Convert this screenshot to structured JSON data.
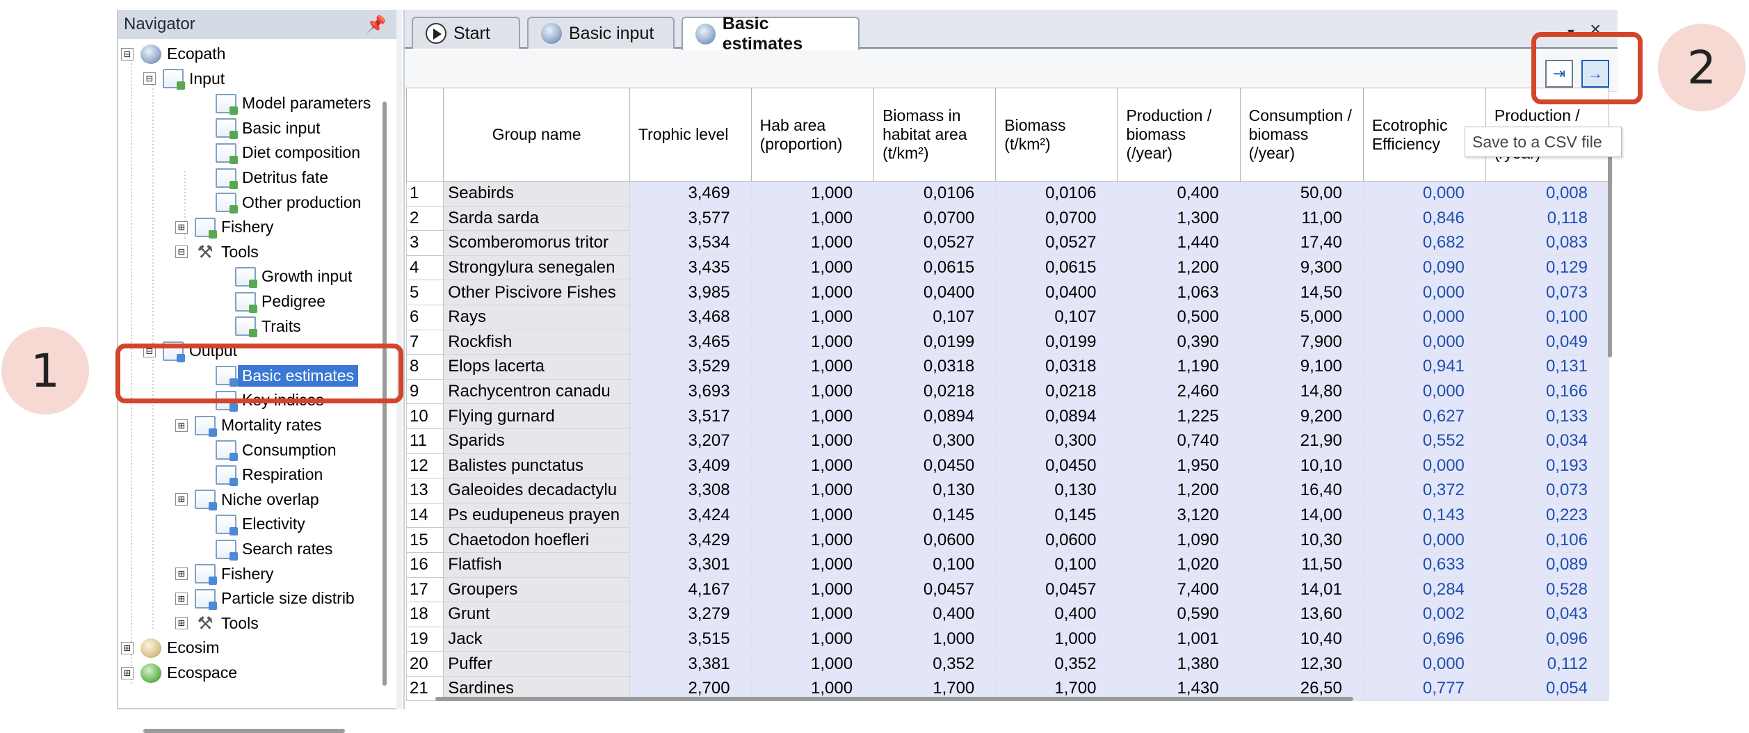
{
  "navigator": {
    "title": "Navigator",
    "items": [
      {
        "label": "Ecopath",
        "expander": "⊟",
        "icon": "globe"
      },
      {
        "label": "Input",
        "expander": "⊟",
        "icon": "doc"
      },
      {
        "label": "Model parameters",
        "expander": "",
        "icon": "doc"
      },
      {
        "label": "Basic input",
        "expander": "",
        "icon": "doc"
      },
      {
        "label": "Diet composition",
        "expander": "",
        "icon": "doc"
      },
      {
        "label": "Detritus fate",
        "expander": "",
        "icon": "doc"
      },
      {
        "label": "Other production",
        "expander": "",
        "icon": "doc"
      },
      {
        "label": "Fishery",
        "expander": "⊞",
        "icon": "doc"
      },
      {
        "label": "Tools",
        "expander": "⊟",
        "icon": "tools"
      },
      {
        "label": "Growth input",
        "expander": "",
        "icon": "doc"
      },
      {
        "label": "Pedigree",
        "expander": "",
        "icon": "doc"
      },
      {
        "label": "Traits",
        "expander": "",
        "icon": "doc"
      },
      {
        "label": "Output",
        "expander": "⊟",
        "icon": "doc-out"
      },
      {
        "label": "Basic estimates",
        "expander": "",
        "icon": "doc-out",
        "selected": true
      },
      {
        "label": "Key indices",
        "expander": "",
        "icon": "doc-out"
      },
      {
        "label": "Mortality rates",
        "expander": "⊞",
        "icon": "doc-out"
      },
      {
        "label": "Consumption",
        "expander": "",
        "icon": "doc-out"
      },
      {
        "label": "Respiration",
        "expander": "",
        "icon": "doc-out"
      },
      {
        "label": "Niche overlap",
        "expander": "⊞",
        "icon": "doc-out"
      },
      {
        "label": "Electivity",
        "expander": "",
        "icon": "doc-out"
      },
      {
        "label": "Search rates",
        "expander": "",
        "icon": "doc-out"
      },
      {
        "label": "Fishery",
        "expander": "⊞",
        "icon": "doc-out"
      },
      {
        "label": "Particle size distrib",
        "expander": "⊞",
        "icon": "doc-out"
      },
      {
        "label": "Tools",
        "expander": "⊞",
        "icon": "tools"
      },
      {
        "label": "Ecosim",
        "expander": "⊞",
        "icon": "sim"
      },
      {
        "label": "Ecospace",
        "expander": "⊞",
        "icon": "space"
      }
    ]
  },
  "tabs": [
    {
      "label": "Start"
    },
    {
      "label": "Basic input"
    },
    {
      "label": "Basic estimates"
    }
  ],
  "tooltip": "Save to a CSV file",
  "callouts": {
    "one": "1",
    "two": "2"
  },
  "table": {
    "columns": [
      "Group name",
      "Trophic level",
      "Hab area (proportion)",
      "Biomass in habitat area (t/km²)",
      "Biomass (t/km²)",
      "Production / biomass (/year)",
      "Consumption / biomass (/year)",
      "Ecotrophic Efficiency",
      "Production / consumption (/year)"
    ],
    "rows": [
      [
        "1",
        "Seabirds",
        "3,469",
        "1,000",
        "0,0106",
        "0,0106",
        "0,400",
        "50,00",
        "0,000",
        "0,008"
      ],
      [
        "2",
        "Sarda sarda",
        "3,577",
        "1,000",
        "0,0700",
        "0,0700",
        "1,300",
        "11,00",
        "0,846",
        "0,118"
      ],
      [
        "3",
        "Scomberomorus tritor",
        "3,534",
        "1,000",
        "0,0527",
        "0,0527",
        "1,440",
        "17,40",
        "0,682",
        "0,083"
      ],
      [
        "4",
        "Strongylura senegalen",
        "3,435",
        "1,000",
        "0,0615",
        "0,0615",
        "1,200",
        "9,300",
        "0,090",
        "0,129"
      ],
      [
        "5",
        "Other Piscivore Fishes",
        "3,985",
        "1,000",
        "0,0400",
        "0,0400",
        "1,063",
        "14,50",
        "0,000",
        "0,073"
      ],
      [
        "6",
        "Rays",
        "3,468",
        "1,000",
        "0,107",
        "0,107",
        "0,500",
        "5,000",
        "0,000",
        "0,100"
      ],
      [
        "7",
        "Rockfish",
        "3,465",
        "1,000",
        "0,0199",
        "0,0199",
        "0,390",
        "7,900",
        "0,000",
        "0,049"
      ],
      [
        "8",
        "Elops lacerta",
        "3,529",
        "1,000",
        "0,0318",
        "0,0318",
        "1,190",
        "9,100",
        "0,941",
        "0,131"
      ],
      [
        "9",
        "Rachycentron canadu",
        "3,693",
        "1,000",
        "0,0218",
        "0,0218",
        "2,460",
        "14,80",
        "0,000",
        "0,166"
      ],
      [
        "10",
        " Flying gurnard",
        "3,517",
        "1,000",
        "0,0894",
        "0,0894",
        "1,225",
        "9,200",
        "0,627",
        "0,133"
      ],
      [
        "11",
        "Sparids",
        "3,207",
        "1,000",
        "0,300",
        "0,300",
        "0,740",
        "21,90",
        "0,552",
        "0,034"
      ],
      [
        "12",
        "Balistes  punctatus",
        "3,409",
        "1,000",
        "0,0450",
        "0,0450",
        "1,950",
        "10,10",
        "0,000",
        "0,193"
      ],
      [
        "13",
        "Galeoides decadactylu",
        "3,308",
        "1,000",
        "0,130",
        "0,130",
        "1,200",
        "16,40",
        "0,372",
        "0,073"
      ],
      [
        "14",
        "Ps eudupeneus prayen",
        "3,424",
        "1,000",
        "0,145",
        "0,145",
        "3,120",
        "14,00",
        "0,143",
        "0,223"
      ],
      [
        "15",
        "Chaetodon hoefleri",
        "3,429",
        "1,000",
        "0,0600",
        "0,0600",
        "1,090",
        "10,30",
        "0,000",
        "0,106"
      ],
      [
        "16",
        "Flatfish",
        "3,301",
        "1,000",
        "0,100",
        "0,100",
        "1,020",
        "11,50",
        "0,633",
        "0,089"
      ],
      [
        "17",
        "Groupers",
        "4,167",
        "1,000",
        "0,0457",
        "0,0457",
        "7,400",
        "14,01",
        "0,284",
        "0,528"
      ],
      [
        "18",
        "Grunt",
        "3,279",
        "1,000",
        "0,400",
        "0,400",
        "0,590",
        "13,60",
        "0,002",
        "0,043"
      ],
      [
        "19",
        "Jack",
        "3,515",
        "1,000",
        "1,000",
        "1,000",
        "1,001",
        "10,40",
        "0,696",
        "0,096"
      ],
      [
        "20",
        "Puffer",
        "3,381",
        "1,000",
        "0,352",
        "0,352",
        "1,380",
        "12,30",
        "0,000",
        "0,112"
      ],
      [
        "21",
        "Sardines",
        "2,700",
        "1,000",
        "1,700",
        "1,700",
        "1,430",
        "26,50",
        "0,777",
        "0,054"
      ]
    ]
  },
  "colors": {
    "selection": "#3a78d4",
    "highlight": "#d2452a",
    "numeric_cell": "#e3e6f8",
    "ee_text": "#1f4fb0"
  }
}
